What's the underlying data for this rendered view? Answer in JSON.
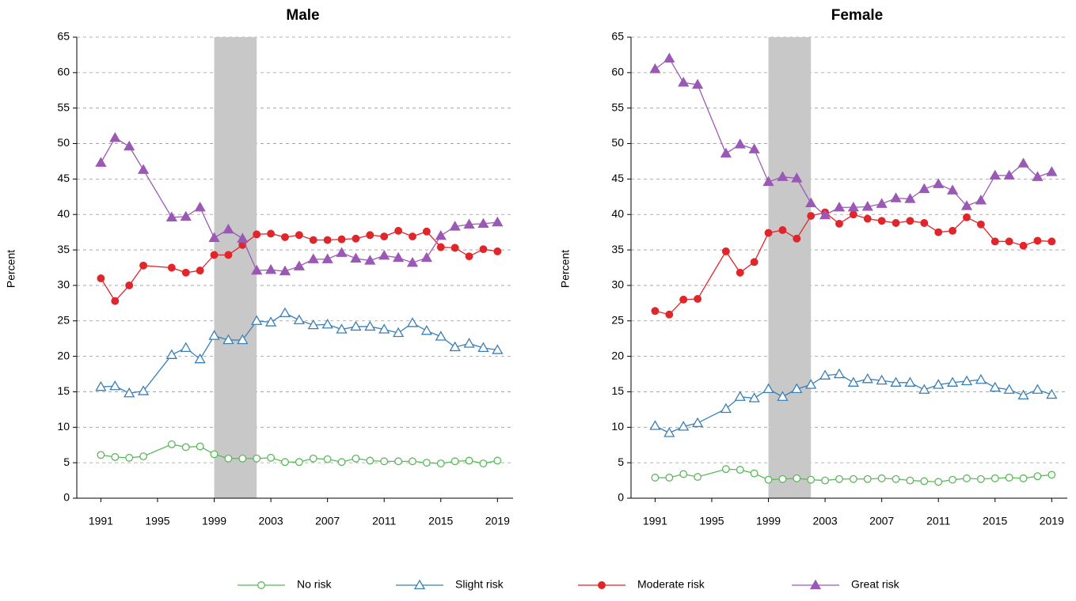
{
  "chart_data": [
    {
      "type": "line",
      "title": "Male",
      "y_label": "Percent",
      "x": [
        1991,
        1992,
        1993,
        1994,
        1996,
        1997,
        1998,
        1999,
        2000,
        2001,
        2002,
        2003,
        2004,
        2005,
        2006,
        2007,
        2008,
        2009,
        2010,
        2011,
        2012,
        2013,
        2014,
        2015,
        2016,
        2017,
        2018,
        2019
      ],
      "xlim": [
        1989.3,
        2020.1
      ],
      "xticks": [
        1991,
        1995,
        1999,
        2003,
        2007,
        2011,
        2015,
        2019
      ],
      "ylim": [
        0,
        65
      ],
      "yticks": [
        0,
        5,
        10,
        15,
        20,
        25,
        30,
        35,
        40,
        45,
        50,
        55,
        60,
        65
      ],
      "grid": true,
      "shaded_region": [
        1999,
        2002
      ],
      "shade_color": "#c8c8c8",
      "series": [
        {
          "name": "No risk",
          "color": "#5cb85c",
          "marker": "circle",
          "filled": false,
          "values": [
            6.1,
            5.8,
            5.7,
            5.9,
            7.6,
            7.2,
            7.3,
            6.2,
            5.6,
            5.6,
            5.6,
            5.7,
            5.1,
            5.1,
            5.6,
            5.5,
            5.1,
            5.6,
            5.3,
            5.2,
            5.2,
            5.2,
            5.0,
            4.9,
            5.2,
            5.3,
            4.9,
            5.3
          ]
        },
        {
          "name": "Slight risk",
          "color": "#3a7fb5",
          "marker": "triangle",
          "filled": false,
          "values": [
            15.7,
            15.8,
            14.8,
            15.1,
            20.2,
            21.2,
            19.6,
            22.9,
            22.3,
            22.3,
            25.0,
            24.8,
            26.1,
            25.1,
            24.4,
            24.5,
            23.8,
            24.2,
            24.2,
            23.8,
            23.3,
            24.7,
            23.6,
            22.8,
            21.3,
            21.8,
            21.2,
            20.9
          ]
        },
        {
          "name": "Moderate risk",
          "color": "#e0262a",
          "marker": "circle",
          "filled": true,
          "values": [
            31.0,
            27.8,
            30.0,
            32.8,
            32.5,
            31.8,
            32.1,
            34.3,
            34.3,
            35.7,
            37.2,
            37.3,
            36.8,
            37.1,
            36.4,
            36.4,
            36.5,
            36.6,
            37.1,
            36.9,
            37.7,
            36.9,
            37.6,
            35.4,
            35.3,
            34.1,
            35.1,
            34.8
          ]
        },
        {
          "name": "Great risk",
          "color": "#9b59b6",
          "marker": "triangle",
          "filled": true,
          "values": [
            47.3,
            50.8,
            49.6,
            46.3,
            39.6,
            39.7,
            41.0,
            36.7,
            37.9,
            36.6,
            32.1,
            32.2,
            32.0,
            32.7,
            33.7,
            33.7,
            34.6,
            33.8,
            33.5,
            34.2,
            33.9,
            33.2,
            33.9,
            37.0,
            38.3,
            38.6,
            38.7,
            38.9
          ]
        }
      ]
    },
    {
      "type": "line",
      "title": "Female",
      "y_label": "Percent",
      "x": [
        1991,
        1992,
        1993,
        1994,
        1996,
        1997,
        1998,
        1999,
        2000,
        2001,
        2002,
        2003,
        2004,
        2005,
        2006,
        2007,
        2008,
        2009,
        2010,
        2011,
        2012,
        2013,
        2014,
        2015,
        2016,
        2017,
        2018,
        2019
      ],
      "xlim": [
        1989.3,
        2020.1
      ],
      "xticks": [
        1991,
        1995,
        1999,
        2003,
        2007,
        2011,
        2015,
        2019
      ],
      "ylim": [
        0,
        65
      ],
      "yticks": [
        0,
        5,
        10,
        15,
        20,
        25,
        30,
        35,
        40,
        45,
        50,
        55,
        60,
        65
      ],
      "grid": true,
      "shaded_region": [
        1999,
        2002
      ],
      "shade_color": "#c8c8c8",
      "series": [
        {
          "name": "No risk",
          "color": "#5cb85c",
          "marker": "circle",
          "filled": false,
          "values": [
            2.9,
            2.9,
            3.4,
            3.0,
            4.1,
            4.0,
            3.5,
            2.6,
            2.7,
            2.8,
            2.6,
            2.5,
            2.7,
            2.7,
            2.7,
            2.8,
            2.7,
            2.5,
            2.4,
            2.3,
            2.6,
            2.8,
            2.7,
            2.8,
            2.9,
            2.8,
            3.1,
            3.3
          ]
        },
        {
          "name": "Slight risk",
          "color": "#3a7fb5",
          "marker": "triangle",
          "filled": false,
          "values": [
            10.2,
            9.2,
            10.1,
            10.6,
            12.6,
            14.3,
            14.1,
            15.4,
            14.3,
            15.4,
            16.0,
            17.3,
            17.5,
            16.3,
            16.8,
            16.6,
            16.3,
            16.3,
            15.3,
            16.0,
            16.3,
            16.5,
            16.7,
            15.6,
            15.3,
            14.5,
            15.3,
            14.6
          ]
        },
        {
          "name": "Moderate risk",
          "color": "#e0262a",
          "marker": "circle",
          "filled": true,
          "values": [
            26.4,
            25.9,
            28.0,
            28.1,
            34.8,
            31.8,
            33.3,
            37.4,
            37.8,
            36.6,
            39.8,
            40.3,
            38.7,
            40.0,
            39.4,
            39.1,
            38.8,
            39.1,
            38.8,
            37.5,
            37.7,
            39.6,
            38.6,
            36.2,
            36.2,
            35.6,
            36.3,
            36.2
          ]
        },
        {
          "name": "Great risk",
          "color": "#9b59b6",
          "marker": "triangle",
          "filled": true,
          "values": [
            60.5,
            62.0,
            58.6,
            58.3,
            48.6,
            49.9,
            49.2,
            44.6,
            45.3,
            45.1,
            41.6,
            39.9,
            41.0,
            41.0,
            41.1,
            41.5,
            42.3,
            42.2,
            43.6,
            44.3,
            43.4,
            41.2,
            42.0,
            45.5,
            45.5,
            47.2,
            45.3,
            46.0
          ]
        }
      ]
    }
  ]
}
